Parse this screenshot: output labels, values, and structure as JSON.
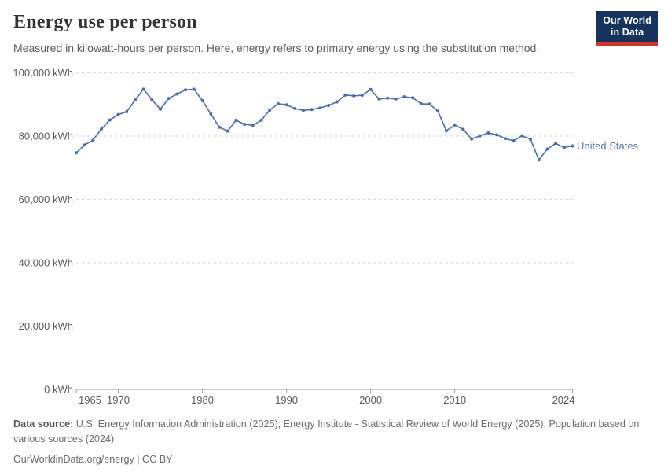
{
  "header": {
    "title": "Energy use per person",
    "subtitle": "Measured in kilowatt-hours per person. Here, energy refers to primary energy using the substitution method."
  },
  "logo": {
    "line1": "Our World",
    "line2": "in Data"
  },
  "chart_data": {
    "type": "line",
    "title": "Energy use per person",
    "unit": "kWh",
    "ylabel": "",
    "xlabel": "",
    "ylim": [
      0,
      100000
    ],
    "yticks": [
      0,
      20000,
      40000,
      60000,
      80000,
      100000
    ],
    "ytick_suffix": " kWh",
    "xticks": [
      1965,
      1970,
      1980,
      1990,
      2000,
      2010,
      2024
    ],
    "grid": "horizontal dashed",
    "legend": "end-of-line label",
    "x": [
      1965,
      1966,
      1967,
      1968,
      1969,
      1970,
      1971,
      1972,
      1973,
      1974,
      1975,
      1976,
      1977,
      1978,
      1979,
      1980,
      1981,
      1982,
      1983,
      1984,
      1985,
      1986,
      1987,
      1988,
      1989,
      1990,
      1991,
      1992,
      1993,
      1994,
      1995,
      1996,
      1997,
      1998,
      1999,
      2000,
      2001,
      2002,
      2003,
      2004,
      2005,
      2006,
      2007,
      2008,
      2009,
      2010,
      2011,
      2012,
      2013,
      2014,
      2015,
      2016,
      2017,
      2018,
      2019,
      2020,
      2021,
      2022,
      2023,
      2024
    ],
    "series": [
      {
        "name": "United States",
        "color": "#4d6da6",
        "label_color": "#5878b0",
        "values": [
          74700,
          77200,
          78700,
          82300,
          85100,
          86800,
          87700,
          91400,
          94800,
          91500,
          88500,
          91900,
          93300,
          94600,
          94800,
          91200,
          87000,
          82800,
          81600,
          85000,
          83700,
          83400,
          85000,
          88200,
          90200,
          89900,
          88700,
          88100,
          88400,
          88900,
          89700,
          90800,
          93000,
          92700,
          92900,
          94700,
          91700,
          92000,
          91700,
          92400,
          92100,
          90200,
          90100,
          87900,
          81700,
          83500,
          82100,
          79100,
          80100,
          81000,
          80400,
          79200,
          78500,
          80100,
          79000,
          72500,
          75900,
          77700,
          76400,
          76900
        ]
      }
    ]
  },
  "footer": {
    "datasource_label": "Data source:",
    "datasource_text": " U.S. Energy Information Administration (2025); Energy Institute - Statistical Review of World Energy (2025); Population based on various sources (2024)",
    "link_text": "OurWorldinData.org/energy | CC BY"
  },
  "colors": {
    "line": "#4d6da6",
    "entity_label": "#5878b0",
    "grid": "#d9d9d9",
    "axis": "#9e9e9e",
    "tick_label": "#595959",
    "logo_bg": "#16335b",
    "logo_bar": "#d0342c"
  }
}
